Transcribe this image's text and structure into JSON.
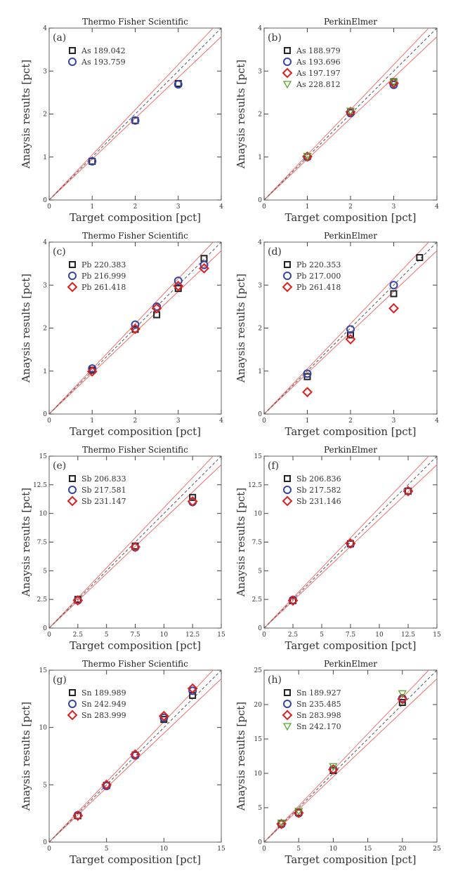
{
  "chart_data": [
    {
      "type": "scatter",
      "panel": "(a)",
      "title": "Thermo Fisher Scientific",
      "xlabel": "Target composition [pct]",
      "ylabel": "Anaysis results [pct]",
      "xlim": [
        0,
        4
      ],
      "ylim": [
        0,
        4
      ],
      "xticks": [
        "0",
        "1",
        "2",
        "3",
        "4"
      ],
      "yticks": [
        "0",
        "1",
        "2",
        "3",
        "4"
      ],
      "xtickvals": [
        0,
        1,
        2,
        3,
        4
      ],
      "ytickvals": [
        0,
        1,
        2,
        3,
        4
      ],
      "band": 0.05,
      "legend_position": "top-left",
      "series": [
        {
          "name": "As 189.042",
          "marker": "square",
          "color": "#222222",
          "x": [
            1,
            2,
            3
          ],
          "y": [
            0.9,
            1.85,
            2.71
          ]
        },
        {
          "name": "As 193.759",
          "marker": "circle",
          "color": "#3344aa",
          "x": [
            1,
            2,
            3
          ],
          "y": [
            0.9,
            1.85,
            2.69
          ]
        }
      ]
    },
    {
      "type": "scatter",
      "panel": "(b)",
      "title": "PerkinElmer",
      "xlabel": "Target composition [pct]",
      "ylabel": "Anaysis results [pct]",
      "xlim": [
        0,
        4
      ],
      "ylim": [
        0,
        4
      ],
      "xticks": [
        "0",
        "1",
        "2",
        "3",
        "4"
      ],
      "yticks": [
        "0",
        "1",
        "2",
        "3",
        "4"
      ],
      "xtickvals": [
        0,
        1,
        2,
        3,
        4
      ],
      "ytickvals": [
        0,
        1,
        2,
        3,
        4
      ],
      "band": 0.05,
      "legend_position": "top-left",
      "series": [
        {
          "name": "As 188.979",
          "marker": "square",
          "color": "#222222",
          "x": [
            1,
            2,
            3
          ],
          "y": [
            1.01,
            2.06,
            2.75
          ]
        },
        {
          "name": "As 193.696",
          "marker": "circle",
          "color": "#3344aa",
          "x": [
            1,
            2,
            3
          ],
          "y": [
            1.0,
            2.02,
            2.68
          ]
        },
        {
          "name": "As 197.197",
          "marker": "diamond",
          "color": "#e02020",
          "x": [
            1,
            2,
            3
          ],
          "y": [
            1.01,
            2.05,
            2.72
          ]
        },
        {
          "name": "As 228.812",
          "marker": "triangle-down",
          "color": "#55aa33",
          "x": [
            1,
            2,
            3
          ],
          "y": [
            1.02,
            2.07,
            2.74
          ]
        }
      ]
    },
    {
      "type": "scatter",
      "panel": "(c)",
      "title": "Thermo Fisher Scientific",
      "xlabel": "Target composition [pct]",
      "ylabel": "Anaysis results [pct]",
      "xlim": [
        0,
        4
      ],
      "ylim": [
        0,
        4
      ],
      "xticks": [
        "0",
        "1",
        "2",
        "3",
        "4"
      ],
      "yticks": [
        "0",
        "1",
        "2",
        "3",
        "4"
      ],
      "xtickvals": [
        0,
        1,
        2,
        3,
        4
      ],
      "ytickvals": [
        0,
        1,
        2,
        3,
        4
      ],
      "band": 0.05,
      "legend_position": "top-left",
      "series": [
        {
          "name": "Pb 220.383",
          "marker": "square",
          "color": "#222222",
          "x": [
            1,
            2,
            2.5,
            3,
            3.6
          ],
          "y": [
            1.02,
            1.97,
            2.31,
            2.92,
            3.62
          ]
        },
        {
          "name": "Pb 216.999",
          "marker": "circle",
          "color": "#3344aa",
          "x": [
            1,
            2,
            2.5,
            3,
            3.6
          ],
          "y": [
            1.06,
            2.08,
            2.5,
            3.1,
            3.47
          ]
        },
        {
          "name": "Pb 261.418",
          "marker": "diamond",
          "color": "#e02020",
          "x": [
            1,
            2,
            2.5,
            3,
            3.6
          ],
          "y": [
            0.99,
            1.98,
            2.46,
            2.98,
            3.39
          ]
        }
      ]
    },
    {
      "type": "scatter",
      "panel": "(d)",
      "title": "PerkinElmer",
      "xlabel": "Target composition [pct]",
      "ylabel": "Anaysis results [pct]",
      "xlim": [
        0,
        4
      ],
      "ylim": [
        0,
        4
      ],
      "xticks": [
        "0",
        "1",
        "2",
        "3",
        "4"
      ],
      "yticks": [
        "0",
        "1",
        "2",
        "3",
        "4"
      ],
      "xtickvals": [
        0,
        1,
        2,
        3,
        4
      ],
      "ytickvals": [
        0,
        1,
        2,
        3,
        4
      ],
      "band": 0.05,
      "legend_position": "top-left",
      "series": [
        {
          "name": "Pb 220.353",
          "marker": "square",
          "color": "#222222",
          "x": [
            1,
            2,
            3,
            3.6
          ],
          "y": [
            0.87,
            1.84,
            2.8,
            3.64
          ]
        },
        {
          "name": "Pb 217.000",
          "marker": "circle",
          "color": "#3344aa",
          "x": [
            1,
            2,
            3
          ],
          "y": [
            0.94,
            1.97,
            3.0
          ]
        },
        {
          "name": "Pb 261.418",
          "marker": "diamond",
          "color": "#e02020",
          "x": [
            1,
            2,
            3
          ],
          "y": [
            0.51,
            1.74,
            2.46
          ]
        }
      ]
    },
    {
      "type": "scatter",
      "panel": "(e)",
      "title": "Thermo Fisher Scientific",
      "xlabel": "Target composition [pct]",
      "ylabel": "Anaysis results [pct]",
      "xlim": [
        0,
        15
      ],
      "ylim": [
        0,
        15
      ],
      "xticks": [
        "0",
        "2.5",
        "5",
        "7.5",
        "10",
        "12.5",
        "15"
      ],
      "yticks": [
        "0",
        "2.5",
        "5",
        "7.5",
        "10",
        "12.5",
        "15"
      ],
      "xtickvals": [
        0,
        2.5,
        5,
        7.5,
        10,
        12.5,
        15
      ],
      "ytickvals": [
        0,
        2.5,
        5,
        7.5,
        10,
        12.5,
        15
      ],
      "band": 0.05,
      "legend_position": "top-left",
      "series": [
        {
          "name": "Sb 206.833",
          "marker": "square",
          "color": "#222222",
          "x": [
            2.5,
            7.5,
            12.5
          ],
          "y": [
            2.5,
            7.15,
            11.4
          ]
        },
        {
          "name": "Sb 217.581",
          "marker": "circle",
          "color": "#3344aa",
          "x": [
            2.5,
            7.5,
            12.5
          ],
          "y": [
            2.42,
            7.05,
            11.0
          ]
        },
        {
          "name": "Sb 231.147",
          "marker": "diamond",
          "color": "#e02020",
          "x": [
            2.5,
            7.5,
            12.5
          ],
          "y": [
            2.42,
            7.08,
            11.05
          ]
        }
      ]
    },
    {
      "type": "scatter",
      "panel": "(f)",
      "title": "PerkinElmer",
      "xlabel": "Target composition [pct]",
      "ylabel": "Anaysis results [pct]",
      "xlim": [
        0,
        15
      ],
      "ylim": [
        0,
        15
      ],
      "xticks": [
        "0",
        "2.5",
        "5",
        "7.5",
        "10",
        "12.5",
        "15"
      ],
      "yticks": [
        "0",
        "2.5",
        "5",
        "7.5",
        "10",
        "12.5",
        "15"
      ],
      "xtickvals": [
        0,
        2.5,
        5,
        7.5,
        10,
        12.5,
        15
      ],
      "ytickvals": [
        0,
        2.5,
        5,
        7.5,
        10,
        12.5,
        15
      ],
      "band": 0.05,
      "legend_position": "top-left",
      "series": [
        {
          "name": "Sb 206.836",
          "marker": "square",
          "color": "#222222",
          "x": [
            2.5,
            7.5,
            12.5
          ],
          "y": [
            2.4,
            7.35,
            11.95
          ]
        },
        {
          "name": "Sb 217.582",
          "marker": "circle",
          "color": "#3344aa",
          "x": [
            2.5,
            7.5,
            12.5
          ],
          "y": [
            2.45,
            7.35,
            11.95
          ]
        },
        {
          "name": "Sb 231.146",
          "marker": "diamond",
          "color": "#e02020",
          "x": [
            2.5,
            7.5,
            12.5
          ],
          "y": [
            2.4,
            7.38,
            11.95
          ]
        }
      ]
    },
    {
      "type": "scatter",
      "panel": "(g)",
      "title": "Thermo Fisher Scientific",
      "xlabel": "Target composition [pct]",
      "ylabel": "Anaysis results [pct]",
      "xlim": [
        0,
        15
      ],
      "ylim": [
        0,
        15
      ],
      "xticks": [
        "0",
        "5",
        "10",
        "15"
      ],
      "yticks": [
        "0",
        "5",
        "10",
        "15"
      ],
      "xtickvals": [
        0,
        5,
        10,
        15
      ],
      "ytickvals": [
        0,
        5,
        10,
        15
      ],
      "band": 0.05,
      "legend_position": "top-left",
      "series": [
        {
          "name": "Sn 189.989",
          "marker": "square",
          "color": "#222222",
          "x": [
            2.5,
            5,
            7.5,
            10,
            12.5
          ],
          "y": [
            2.3,
            4.95,
            7.6,
            10.7,
            12.8
          ]
        },
        {
          "name": "Sn 242.949",
          "marker": "circle",
          "color": "#3344aa",
          "x": [
            2.5,
            5,
            7.5,
            10,
            12.5
          ],
          "y": [
            2.35,
            4.9,
            7.55,
            10.85,
            13.2
          ]
        },
        {
          "name": "Sn 283.999",
          "marker": "diamond",
          "color": "#e02020",
          "x": [
            2.5,
            5,
            7.5,
            10,
            12.5
          ],
          "y": [
            2.3,
            5.0,
            7.65,
            11.0,
            13.4
          ]
        }
      ]
    },
    {
      "type": "scatter",
      "panel": "(h)",
      "title": "PerkinElmer",
      "xlabel": "Target composition [pct]",
      "ylabel": "Anaysis results [pct]",
      "xlim": [
        0,
        25
      ],
      "ylim": [
        0,
        25
      ],
      "xticks": [
        "0",
        "5",
        "10",
        "15",
        "20",
        "25"
      ],
      "yticks": [
        "0",
        "5",
        "10",
        "15",
        "20",
        "25"
      ],
      "xtickvals": [
        0,
        5,
        10,
        15,
        20,
        25
      ],
      "ytickvals": [
        0,
        5,
        10,
        15,
        20,
        25
      ],
      "band": 0.05,
      "legend_position": "top-left",
      "series": [
        {
          "name": "Sn 189.927",
          "marker": "square",
          "color": "#222222",
          "x": [
            2.5,
            5,
            10,
            20
          ],
          "y": [
            2.7,
            4.3,
            10.4,
            20.3
          ]
        },
        {
          "name": "Sn 235.485",
          "marker": "circle",
          "color": "#3344aa",
          "x": [
            2.5,
            5,
            10,
            20
          ],
          "y": [
            2.6,
            4.2,
            10.6,
            20.9
          ]
        },
        {
          "name": "Sn 283.998",
          "marker": "diamond",
          "color": "#e02020",
          "x": [
            2.5,
            5,
            10,
            20
          ],
          "y": [
            2.65,
            4.25,
            10.55,
            20.8
          ]
        },
        {
          "name": "Sn 242.170",
          "marker": "triangle-down",
          "color": "#55aa33",
          "x": [
            2.5,
            5,
            10,
            20
          ],
          "y": [
            2.8,
            4.5,
            11.0,
            21.6
          ]
        }
      ]
    }
  ]
}
